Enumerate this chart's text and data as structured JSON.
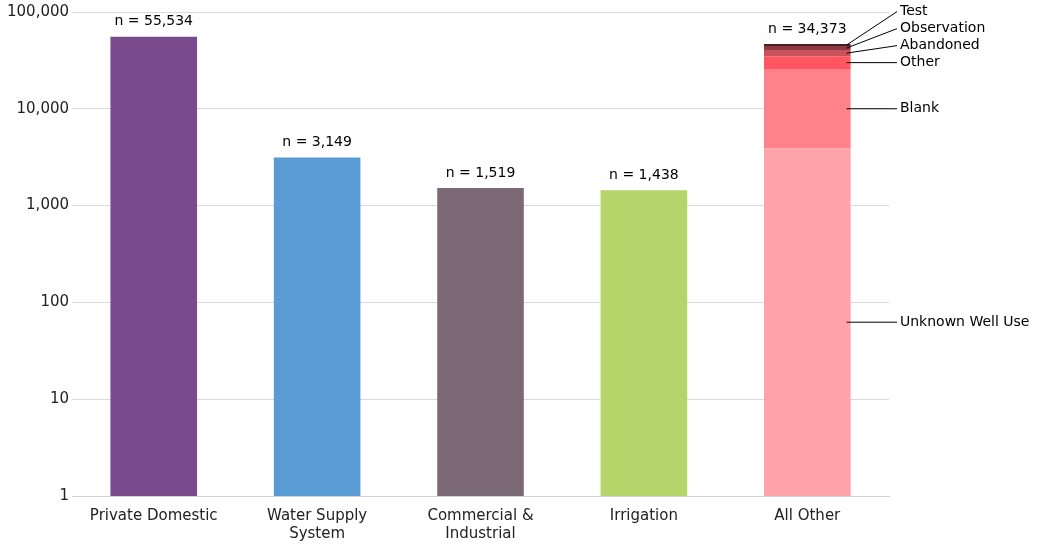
{
  "chart_data": {
    "type": "bar",
    "stacked": true,
    "log": "y",
    "grid": "y",
    "legend": false,
    "categories": [
      "Private Domestic",
      "Water Supply System",
      "Commercial & Industrial",
      "Irrigation",
      "All Other"
    ],
    "series": [
      {
        "colors": [
          "#7a4a8f",
          "#5b9bd5",
          "#7b6a75",
          "#b5d56a",
          null
        ],
        "values": [
          55534,
          3149,
          1519,
          1438,
          null
        ]
      },
      {
        "name": "Unknown Well Use",
        "color": "#ffa3aa",
        "values": [
          null,
          null,
          null,
          null,
          3900
        ]
      },
      {
        "name": "Blank",
        "color": "#ff8189",
        "values": [
          null,
          null,
          null,
          null,
          21800
        ]
      },
      {
        "name": "Other",
        "color": "#ff5661",
        "values": [
          null,
          null,
          null,
          null,
          9300
        ]
      },
      {
        "name": "Abandoned",
        "color": "#c9535c",
        "values": [
          null,
          null,
          null,
          null,
          5400
        ]
      },
      {
        "name": "Observation",
        "color": "#8e3a42",
        "values": [
          null,
          null,
          null,
          null,
          4100
        ]
      },
      {
        "name": "Test",
        "color": "#4b1f24",
        "values": [
          null,
          null,
          null,
          null,
          2200
        ]
      }
    ],
    "annotations": [
      {
        "text": "n = 55,534",
        "x": "Private Domestic",
        "y": 55534
      },
      {
        "text": "n = 3,149",
        "x": "Water Supply System",
        "y": 3149
      },
      {
        "text": "n = 1,519",
        "x": "Commercial & Industrial",
        "y": 1519
      },
      {
        "text": "n = 1,438",
        "x": "Irrigation",
        "y": 1438
      },
      {
        "text": "n = 34,373",
        "x": "All Other",
        "y": 46700
      }
    ],
    "ylim": [
      1,
      100000
    ],
    "yticks": [
      {
        "value": 1,
        "label": "1"
      },
      {
        "value": 10,
        "label": "10"
      },
      {
        "value": 100,
        "label": "100"
      },
      {
        "value": 1000,
        "label": "1,000"
      },
      {
        "value": 10000,
        "label": "10,000"
      },
      {
        "value": 100000,
        "label": "100,000"
      }
    ]
  }
}
